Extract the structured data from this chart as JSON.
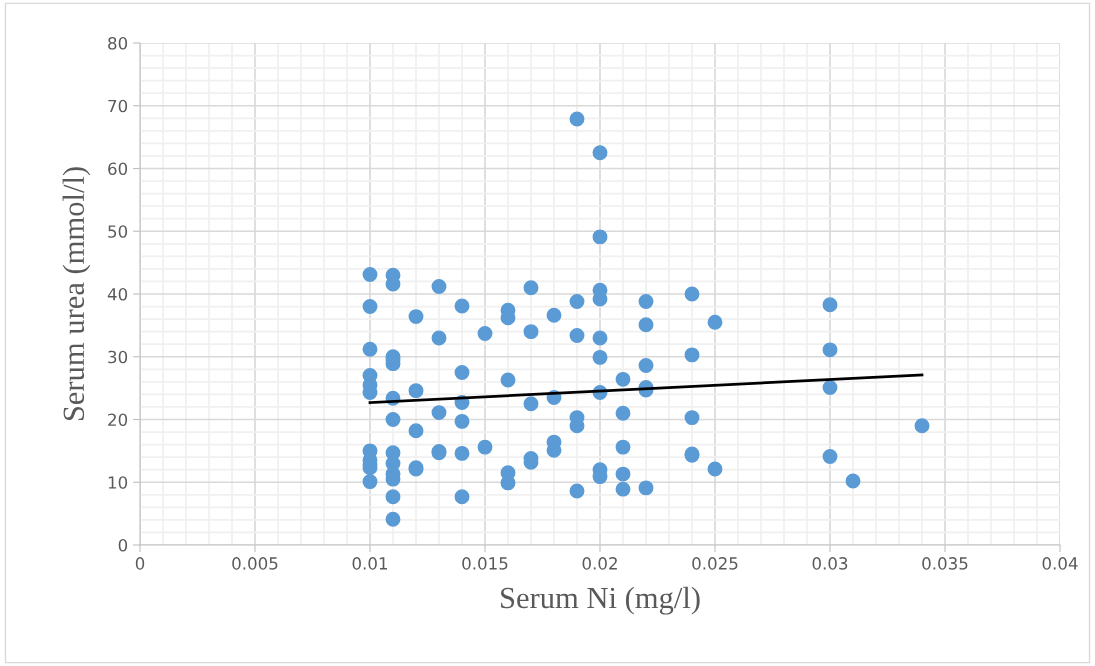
{
  "chart_data": {
    "type": "scatter",
    "xlabel": "Serum Ni (mg/l)",
    "ylabel": "Serum urea (mmol/l)",
    "xlim": [
      0,
      0.04
    ],
    "xticks": [
      0,
      0.005,
      0.01,
      0.015,
      0.02,
      0.025,
      0.03,
      0.035,
      0.04
    ],
    "ylim": [
      0,
      80
    ],
    "yticks": [
      0,
      10,
      20,
      30,
      40,
      50,
      60,
      70,
      80
    ],
    "grid": true,
    "series": [
      {
        "color": "#5b9bd5",
        "marker": "circle",
        "x": [
          0.01,
          0.01,
          0.01,
          0.01,
          0.01,
          0.01,
          0.01,
          0.01,
          0.01,
          0.01,
          0.01,
          0.011,
          0.011,
          0.011,
          0.011,
          0.011,
          0.011,
          0.011,
          0.011,
          0.011,
          0.011,
          0.011,
          0.011,
          0.011,
          0.012,
          0.012,
          0.012,
          0.012,
          0.012,
          0.013,
          0.013,
          0.013,
          0.013,
          0.013,
          0.014,
          0.014,
          0.014,
          0.014,
          0.014,
          0.014,
          0.015,
          0.015,
          0.016,
          0.016,
          0.016,
          0.016,
          0.016,
          0.017,
          0.017,
          0.017,
          0.017,
          0.017,
          0.018,
          0.018,
          0.018,
          0.018,
          0.019,
          0.019,
          0.019,
          0.019,
          0.019,
          0.019,
          0.02,
          0.02,
          0.02,
          0.02,
          0.02,
          0.02,
          0.02,
          0.02,
          0.02,
          0.021,
          0.021,
          0.021,
          0.021,
          0.021,
          0.022,
          0.022,
          0.022,
          0.022,
          0.022,
          0.022,
          0.024,
          0.024,
          0.024,
          0.024,
          0.024,
          0.025,
          0.025,
          0.03,
          0.03,
          0.03,
          0.03,
          0.031,
          0.034
        ],
        "values": [
          43.1,
          38,
          31.2,
          27,
          25.5,
          24.3,
          15,
          13.5,
          12.8,
          12.3,
          10.1,
          43,
          41.6,
          30,
          29.5,
          28.9,
          23.4,
          20,
          14.7,
          13,
          11.3,
          10.5,
          7.7,
          4.1,
          36.4,
          24.6,
          18.2,
          12.3,
          12.1,
          41.2,
          33,
          21.1,
          14.9,
          14.7,
          38.1,
          27.5,
          22.7,
          19.7,
          14.6,
          7.7,
          33.7,
          15.6,
          37.4,
          36.2,
          26.3,
          11.5,
          9.9,
          41,
          34,
          22.5,
          13.8,
          13.2,
          36.6,
          23.5,
          16.4,
          15.1,
          67.9,
          38.8,
          33.4,
          20.3,
          19,
          8.6,
          62.5,
          49.1,
          40.6,
          39.2,
          33,
          29.9,
          24.3,
          12,
          10.9,
          26.4,
          21,
          15.6,
          11.3,
          8.9,
          38.8,
          35.1,
          28.6,
          25.1,
          24.7,
          9.1,
          40,
          30.3,
          20.3,
          14.5,
          14.3,
          35.5,
          12.1,
          38.3,
          31.1,
          25.1,
          14.1,
          10.2,
          19
        ]
      },
      {
        "type": "line",
        "color": "#000000",
        "x": [
          0.01,
          0.034
        ],
        "values": [
          22.7,
          27.1
        ]
      }
    ]
  }
}
